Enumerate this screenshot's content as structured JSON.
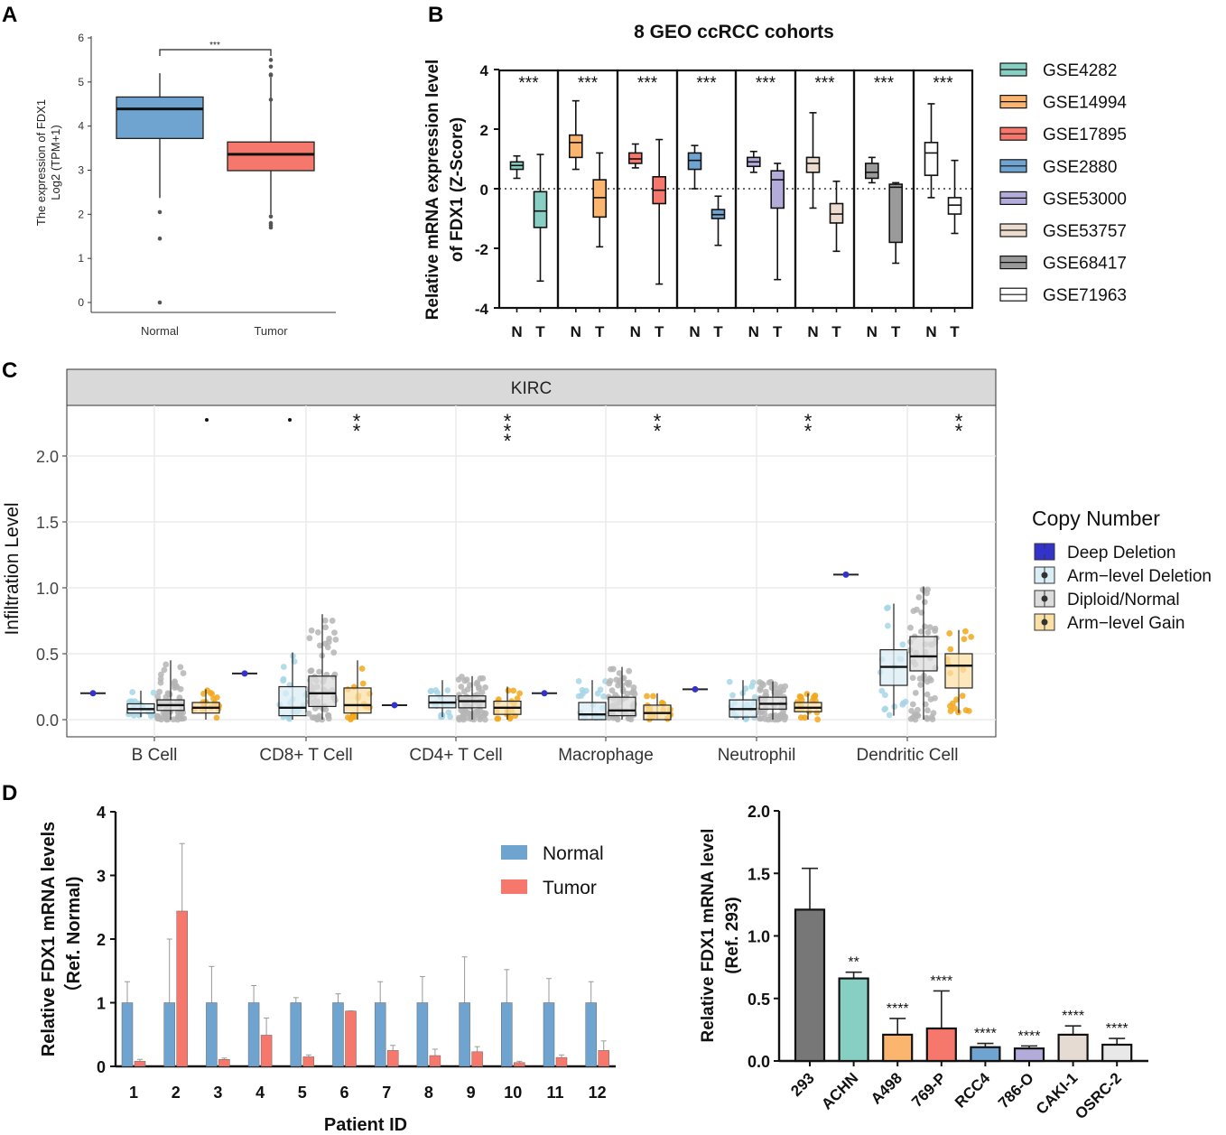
{
  "colors": {
    "normal_blue": "#6fa3d0",
    "tumor_red": "#f6776b",
    "kirc_strip": "#d9d9d9",
    "grid": "#ebebeb",
    "deep_deletion": "#3333cc",
    "arm_deletion": "#a7d6e6",
    "diploid": "#b5b5b5",
    "arm_gain": "#f2a81d",
    "gse_fills": [
      "#87cfc2",
      "#fbb56e",
      "#f6776b",
      "#6fa3d0",
      "#b3abd9",
      "#ecdcd0",
      "#9a9a9a",
      "#ffffff"
    ],
    "cell_line_fills": [
      "#777777",
      "#86cfc2",
      "#fbb56e",
      "#f6776b",
      "#6fa3d0",
      "#b3abd9",
      "#e5dbd2",
      "#e8e8e8"
    ]
  },
  "chart_data": [
    {
      "panel": "A",
      "type": "box",
      "title": "",
      "categories": [
        "Normal",
        "Tumor"
      ],
      "ylabel_line1": "The expression of FDX1",
      "ylabel_line2": "Log2 (TPM+1)",
      "ylim": [
        0,
        6
      ],
      "yticks": [
        "0",
        "1",
        "2",
        "3",
        "4",
        "5",
        "6"
      ],
      "significance": "***",
      "boxes": [
        {
          "name": "Normal",
          "q1": 3.72,
          "median": 4.39,
          "q3": 4.66,
          "whisker_low": 2.37,
          "whisker_high": 5.2,
          "outliers": [
            2.05,
            1.45,
            0.0
          ]
        },
        {
          "name": "Tumor",
          "q1": 2.99,
          "median": 3.36,
          "q3": 3.64,
          "whisker_low": 2.0,
          "whisker_high": 5.1,
          "outliers": [
            5.5,
            5.35,
            5.17,
            5.15,
            4.6,
            1.95,
            1.8,
            1.75,
            1.7
          ]
        }
      ]
    },
    {
      "panel": "B",
      "type": "box",
      "title": "8 GEO ccRCC cohorts",
      "ylabel_line1": "Relative mRNA expression level",
      "ylabel_line2": "of FDX1 (Z-Score)",
      "ylim": [
        -4,
        4
      ],
      "yticks": [
        "-4",
        "-2",
        "0",
        "2",
        "4"
      ],
      "xticks": [
        "N",
        "T"
      ],
      "significance": [
        "***",
        "***",
        "***",
        "***",
        "***",
        "***",
        "***",
        "***"
      ],
      "series": [
        {
          "name": "GSE4282",
          "N": [
            0.35,
            0.65,
            0.78,
            0.9,
            1.1
          ],
          "T": [
            -3.1,
            -1.3,
            -0.75,
            -0.1,
            1.15
          ]
        },
        {
          "name": "GSE14994",
          "N": [
            0.65,
            1.05,
            1.55,
            1.8,
            2.95
          ],
          "T": [
            -1.95,
            -0.95,
            -0.3,
            0.3,
            1.2
          ]
        },
        {
          "name": "GSE17895",
          "N": [
            0.7,
            0.85,
            1.0,
            1.2,
            1.5
          ],
          "T": [
            -3.2,
            -0.5,
            -0.05,
            0.4,
            1.65
          ]
        },
        {
          "name": "GSE2880",
          "N": [
            0.0,
            0.65,
            0.95,
            1.2,
            1.45
          ],
          "T": [
            -1.9,
            -1.0,
            -0.87,
            -0.7,
            -0.25
          ]
        },
        {
          "name": "GSE53000",
          "N": [
            0.55,
            0.75,
            0.9,
            1.05,
            1.25
          ],
          "T": [
            -3.05,
            -0.65,
            0.3,
            0.6,
            0.85
          ]
        },
        {
          "name": "GSE53757",
          "N": [
            -0.65,
            0.55,
            0.85,
            1.05,
            2.55
          ],
          "T": [
            -2.1,
            -1.15,
            -0.85,
            -0.5,
            0.25
          ]
        },
        {
          "name": "GSE68417",
          "N": [
            0.2,
            0.35,
            0.55,
            0.85,
            1.05
          ],
          "T": [
            -2.5,
            -1.8,
            0.05,
            0.15,
            0.2
          ]
        },
        {
          "name": "GSE71963",
          "N": [
            -0.3,
            0.45,
            1.2,
            1.55,
            2.85
          ],
          "T": [
            -1.5,
            -0.85,
            -0.55,
            -0.3,
            0.95
          ]
        }
      ]
    },
    {
      "panel": "C",
      "type": "box",
      "strip_title": "KIRC",
      "ylabel": "Infiltration Level",
      "ylim": [
        -0.1,
        2.35
      ],
      "yticks": [
        "0.0",
        "0.5",
        "1.0",
        "1.5",
        "2.0"
      ],
      "legend_title": "Copy Number",
      "legend": [
        "Deep Deletion",
        "Arm−level Deletion",
        "Diploid/Normal",
        "Arm−level Gain"
      ],
      "categories": [
        "B Cell",
        "CD8+ T Cell",
        "CD4+ T Cell",
        "Macrophage",
        "Neutrophil",
        "Dendritic Cell"
      ],
      "significance": [
        ".",
        ". **",
        "***",
        "**",
        "**",
        "**"
      ],
      "groups": [
        {
          "cell": "B Cell",
          "deep": 0.2,
          "arm_del": [
            0.02,
            0.05,
            0.08,
            0.12,
            0.22
          ],
          "diploid": [
            0.0,
            0.07,
            0.11,
            0.15,
            0.45
          ],
          "arm_gain": [
            0.0,
            0.05,
            0.09,
            0.13,
            0.23
          ]
        },
        {
          "cell": "CD8+ T Cell",
          "deep": 0.35,
          "arm_del": [
            0.0,
            0.03,
            0.09,
            0.25,
            0.51
          ],
          "diploid": [
            0.0,
            0.1,
            0.2,
            0.33,
            0.8
          ],
          "arm_gain": [
            0.0,
            0.05,
            0.11,
            0.24,
            0.45
          ]
        },
        {
          "cell": "CD4+ T Cell",
          "deep": 0.11,
          "arm_del": [
            0.02,
            0.09,
            0.13,
            0.18,
            0.3
          ],
          "diploid": [
            0.0,
            0.09,
            0.14,
            0.18,
            0.33
          ],
          "arm_gain": [
            0.0,
            0.04,
            0.09,
            0.14,
            0.25
          ]
        },
        {
          "cell": "Macrophage",
          "deep": 0.2,
          "arm_del": [
            0.0,
            0.0,
            0.04,
            0.13,
            0.3
          ],
          "diploid": [
            0.0,
            0.03,
            0.07,
            0.17,
            0.4
          ],
          "arm_gain": [
            0.0,
            0.0,
            0.05,
            0.11,
            0.2
          ]
        },
        {
          "cell": "Neutrophil",
          "deep": 0.23,
          "arm_del": [
            0.0,
            0.02,
            0.08,
            0.15,
            0.3
          ],
          "diploid": [
            0.0,
            0.08,
            0.12,
            0.17,
            0.29
          ],
          "arm_gain": [
            0.0,
            0.06,
            0.09,
            0.13,
            0.2
          ]
        },
        {
          "cell": "Dendritic Cell",
          "deep": 1.1,
          "arm_del": [
            0.03,
            0.26,
            0.4,
            0.53,
            0.88
          ],
          "diploid": [
            0.0,
            0.37,
            0.48,
            0.63,
            1.01
          ],
          "arm_gain": [
            0.05,
            0.24,
            0.41,
            0.5,
            0.68
          ]
        }
      ]
    },
    {
      "panel": "D-left",
      "type": "bar",
      "xlabel": "Patient ID",
      "ylabel_line1": "Relative FDX1 mRNA levels",
      "ylabel_line2": "（Ref. Normal)",
      "ylim": [
        0,
        4
      ],
      "yticks": [
        "0",
        "1",
        "2",
        "3",
        "4"
      ],
      "categories": [
        "1",
        "2",
        "3",
        "4",
        "5",
        "6",
        "7",
        "8",
        "9",
        "10",
        "11",
        "12"
      ],
      "series": [
        {
          "name": "Normal",
          "values": [
            1,
            1,
            1,
            1,
            1,
            1,
            1,
            1,
            1,
            1,
            1,
            1
          ],
          "errors": [
            0.33,
            1.0,
            0.57,
            0.27,
            0.08,
            0.14,
            0.33,
            0.41,
            0.72,
            0.52,
            0.38,
            0.33
          ]
        },
        {
          "name": "Tumor",
          "values": [
            0.08,
            2.44,
            0.11,
            0.49,
            0.15,
            0.87,
            0.25,
            0.17,
            0.23,
            0.06,
            0.14,
            0.25
          ],
          "errors": [
            0.03,
            1.06,
            0.02,
            0.27,
            0.03,
            0.0,
            0.08,
            0.1,
            0.08,
            0.02,
            0.04,
            0.15
          ]
        }
      ]
    },
    {
      "panel": "D-right",
      "type": "bar",
      "xlabel": "",
      "ylabel_line1": "Relative FDX1 mRNA level",
      "ylabel_line2": "(Ref. 293)",
      "ylim": [
        0,
        2.0
      ],
      "yticks": [
        "0.0",
        "0.5",
        "1.0",
        "1.5",
        "2.0"
      ],
      "categories": [
        "293",
        "ACHN",
        "A498",
        "769-P",
        "RCC4",
        "786-O",
        "CAKI-1",
        "OSRC-2"
      ],
      "values": [
        1.21,
        0.66,
        0.21,
        0.26,
        0.11,
        0.1,
        0.21,
        0.13
      ],
      "errors": [
        0.33,
        0.05,
        0.13,
        0.3,
        0.03,
        0.02,
        0.07,
        0.05
      ],
      "significance": [
        "",
        "**",
        "****",
        "****",
        "****",
        "****",
        "****",
        "****"
      ]
    }
  ],
  "panel_letters": [
    "A",
    "B",
    "C",
    "D"
  ]
}
